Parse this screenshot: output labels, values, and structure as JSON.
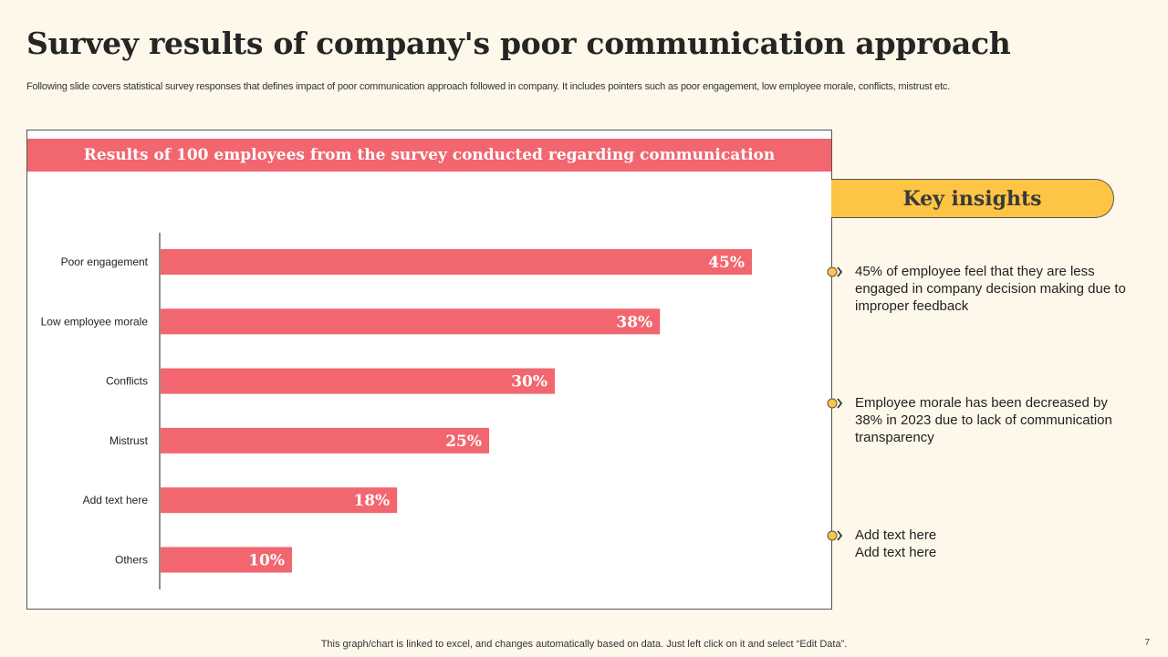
{
  "page": {
    "title": "Survey results of company's poor communication approach",
    "subtitle": "Following slide covers statistical survey responses that defines impact of poor communication approach followed in company. It includes pointers such as poor engagement, low employee morale, conflicts, mistrust etc.",
    "footer_note": "This graph/chart is linked to excel,  and changes automatically based on data. Just left click on it and select “Edit Data”.",
    "page_number": "7"
  },
  "chart_header": "Results of 100  employees from the survey conducted regarding communication",
  "chart_data": {
    "type": "bar",
    "orientation": "horizontal",
    "title": "Results of 100  employees from the survey conducted regarding communication",
    "categories": [
      "Poor engagement",
      "Low employee morale",
      "Conflicts",
      "Mistrust",
      "Add text here",
      "Others"
    ],
    "values": [
      45,
      38,
      30,
      25,
      18,
      10
    ],
    "value_labels": [
      "45%",
      "38%",
      "30%",
      "25%",
      "18%",
      "10%"
    ],
    "unit": "%",
    "xlim": [
      0,
      50
    ],
    "bar_color": "#f2666f",
    "grid": false,
    "xlabel": "",
    "ylabel": ""
  },
  "insights": {
    "heading": "Key insights",
    "items": [
      {
        "text": "45% of employee feel that they are less engaged in company decision making due to improper feedback"
      },
      {
        "text": "Employee morale has been decreased by 38% in 2023 due to lack of communication transparency"
      },
      {
        "text": "Add text here\nAdd text here"
      }
    ]
  },
  "colors": {
    "background": "#fdf8ea",
    "accent": "#f2666f",
    "highlight": "#fdc543"
  }
}
